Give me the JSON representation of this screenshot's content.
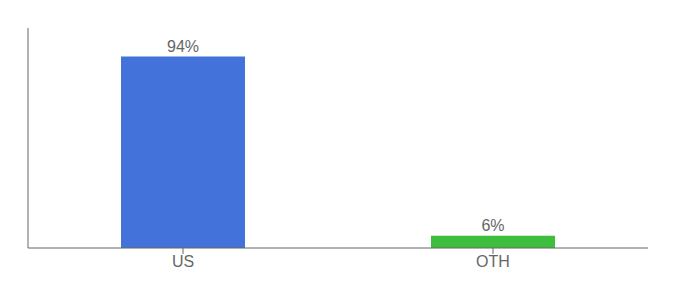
{
  "chart_data": {
    "type": "bar",
    "categories": [
      "US",
      "OTH"
    ],
    "values": [
      94,
      6
    ],
    "value_labels": [
      "94%",
      "6%"
    ],
    "data_labels": true,
    "colors": [
      "#4472DB",
      "#3DBF3D"
    ],
    "ylim": [
      0,
      108
    ],
    "tick_labels": "x",
    "grid": false
  }
}
